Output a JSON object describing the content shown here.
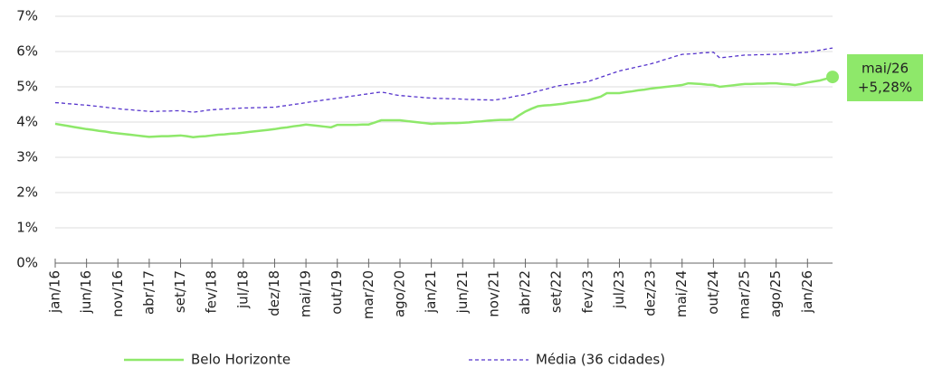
{
  "chart_data": {
    "type": "line",
    "categories": [
      "jan/16",
      null,
      null,
      null,
      null,
      "jun/16",
      null,
      null,
      null,
      null,
      "nov/16",
      null,
      null,
      null,
      null,
      "abr/17",
      null,
      null,
      null,
      null,
      "set/17",
      null,
      null,
      null,
      null,
      "fev/18",
      null,
      null,
      null,
      null,
      "jul/18",
      null,
      null,
      null,
      null,
      "dez/18",
      null,
      null,
      null,
      null,
      "mai/19",
      null,
      null,
      null,
      null,
      "out/19",
      null,
      null,
      null,
      null,
      "mar/20",
      null,
      null,
      null,
      null,
      "ago/20",
      null,
      null,
      null,
      null,
      "jan/21",
      null,
      null,
      null,
      null,
      "jun/21",
      null,
      null,
      null,
      null,
      "nov/21",
      null,
      null,
      null,
      null,
      "abr/22",
      null,
      null,
      null,
      null,
      "set/22",
      null,
      null,
      null,
      null,
      "fev/23",
      null,
      null,
      null,
      null,
      "jul/23",
      null,
      null,
      null,
      null,
      "dez/23",
      null,
      null,
      null,
      null,
      "mai/24",
      null,
      null,
      null,
      null,
      "out/24",
      null,
      null,
      null,
      null,
      "mar/25",
      null,
      null,
      null,
      null,
      "ago/25",
      null,
      null,
      null,
      null,
      "jan/26",
      null,
      null,
      null,
      null
    ],
    "series": [
      {
        "name": "Belo Horizonte",
        "color": "#8ee86a",
        "dashed": false,
        "values": [
          3.95,
          3.92,
          3.89,
          3.86,
          3.83,
          3.8,
          3.78,
          3.75,
          3.73,
          3.7,
          3.68,
          3.66,
          3.64,
          3.62,
          3.6,
          3.58,
          3.59,
          3.6,
          3.6,
          3.61,
          3.62,
          3.6,
          3.57,
          3.59,
          3.6,
          3.62,
          3.64,
          3.65,
          3.67,
          3.68,
          3.7,
          3.72,
          3.74,
          3.76,
          3.78,
          3.8,
          3.83,
          3.85,
          3.88,
          3.9,
          3.93,
          3.91,
          3.89,
          3.87,
          3.85,
          3.92,
          3.92,
          3.92,
          3.92,
          3.93,
          3.93,
          3.99,
          4.05,
          4.05,
          4.05,
          4.05,
          4.03,
          4.01,
          3.99,
          3.97,
          3.95,
          3.96,
          3.96,
          3.97,
          3.97,
          3.98,
          3.99,
          4.01,
          4.02,
          4.04,
          4.05,
          4.06,
          4.06,
          4.07,
          4.19,
          4.3,
          4.38,
          4.45,
          4.47,
          4.48,
          4.5,
          4.52,
          4.55,
          4.57,
          4.6,
          4.62,
          4.67,
          4.72,
          4.82,
          4.82,
          4.82,
          4.85,
          4.87,
          4.9,
          4.92,
          4.95,
          4.97,
          4.99,
          5.01,
          5.03,
          5.05,
          5.1,
          5.09,
          5.08,
          5.06,
          5.05,
          5.0,
          5.02,
          5.04,
          5.06,
          5.08,
          5.08,
          5.09,
          5.09,
          5.1,
          5.1,
          5.08,
          5.07,
          5.05,
          5.08,
          5.12,
          5.15,
          5.18,
          5.23,
          5.28
        ]
      },
      {
        "name": "Média (36 cidades)",
        "color": "#5533cc",
        "dashed": true,
        "values": [
          4.55,
          4.54,
          4.52,
          4.51,
          4.49,
          4.48,
          4.46,
          4.44,
          4.42,
          4.4,
          4.38,
          4.36,
          4.35,
          4.33,
          4.32,
          4.3,
          4.3,
          4.31,
          4.31,
          4.32,
          4.32,
          4.3,
          4.28,
          4.3,
          4.33,
          4.35,
          4.36,
          4.37,
          4.38,
          4.39,
          4.4,
          4.4,
          4.41,
          4.41,
          4.42,
          4.42,
          4.45,
          4.47,
          4.5,
          4.52,
          4.55,
          4.58,
          4.6,
          4.63,
          4.65,
          4.68,
          4.7,
          4.73,
          4.75,
          4.78,
          4.8,
          4.83,
          4.85,
          4.82,
          4.78,
          4.75,
          4.74,
          4.72,
          4.71,
          4.69,
          4.68,
          4.67,
          4.67,
          4.66,
          4.66,
          4.65,
          4.64,
          4.64,
          4.63,
          4.63,
          4.62,
          4.65,
          4.68,
          4.72,
          4.75,
          4.78,
          4.83,
          4.88,
          4.92,
          4.97,
          5.02,
          5.05,
          5.07,
          5.1,
          5.12,
          5.15,
          5.21,
          5.27,
          5.33,
          5.39,
          5.45,
          5.49,
          5.53,
          5.57,
          5.61,
          5.65,
          5.7,
          5.76,
          5.81,
          5.87,
          5.92,
          5.93,
          5.94,
          5.96,
          5.97,
          5.98,
          5.82,
          5.84,
          5.86,
          5.88,
          5.9,
          5.9,
          5.91,
          5.91,
          5.92,
          5.92,
          5.93,
          5.94,
          5.96,
          5.97,
          5.98,
          6.01,
          6.04,
          6.07,
          6.1
        ]
      }
    ],
    "annotation": {
      "date": "mai/26",
      "text": "+5,28%"
    },
    "ylim": [
      0,
      7
    ],
    "yticks": [
      {
        "value": 0,
        "label": "0%"
      },
      {
        "value": 1,
        "label": "1%"
      },
      {
        "value": 2,
        "label": "2%"
      },
      {
        "value": 3,
        "label": "3%"
      },
      {
        "value": 4,
        "label": "4%"
      },
      {
        "value": 5,
        "label": "5%"
      },
      {
        "value": 6,
        "label": "6%"
      },
      {
        "value": 7,
        "label": "7%"
      }
    ],
    "grid": true
  }
}
